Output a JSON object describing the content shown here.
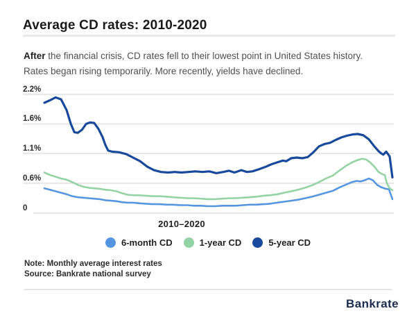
{
  "header": {
    "title": "Average CD rates: 2010-2020",
    "description_lead": "After",
    "description_rest": " the financial crisis, CD rates fell to their lowest point in United States history. Rates began rising temporarily. More recently, yields have declined."
  },
  "footer": {
    "note": "Note: Monthly average interest rates",
    "source": "Source: Bankrate national survey",
    "brand": "Bankrate"
  },
  "colors": {
    "six_month_cd": "#5596e0",
    "one_year_cd": "#94d3a3",
    "five_year_cd": "#17499c",
    "gridline": "#e0e0e0",
    "brand_navy": "#1b2c52"
  },
  "chart_data": {
    "type": "line",
    "title": "Average CD rates: 2010-2020",
    "xlabel": "2010–2020",
    "ylabel": "",
    "x_range": [
      2010,
      2020
    ],
    "ylim": [
      0,
      2.2
    ],
    "yticks": [
      "2.2%",
      "1.6%",
      "1.1%",
      "0.6%",
      "0"
    ],
    "ytick_values": [
      2.2,
      1.6,
      1.1,
      0.6,
      0
    ],
    "grid": true,
    "legend_position": "bottom",
    "units": "percent",
    "series": [
      {
        "name": "6-month CD",
        "color": "#5596e0",
        "points": [
          [
            0,
            0.5
          ],
          [
            0.016,
            0.47
          ],
          [
            0.032,
            0.44
          ],
          [
            0.048,
            0.41
          ],
          [
            0.064,
            0.38
          ],
          [
            0.08,
            0.34
          ],
          [
            0.096,
            0.32
          ],
          [
            0.112,
            0.31
          ],
          [
            0.127,
            0.3
          ],
          [
            0.143,
            0.29
          ],
          [
            0.159,
            0.28
          ],
          [
            0.175,
            0.26
          ],
          [
            0.191,
            0.25
          ],
          [
            0.207,
            0.24
          ],
          [
            0.223,
            0.22
          ],
          [
            0.239,
            0.21
          ],
          [
            0.255,
            0.21
          ],
          [
            0.271,
            0.2
          ],
          [
            0.291,
            0.19
          ],
          [
            0.311,
            0.18
          ],
          [
            0.331,
            0.18
          ],
          [
            0.351,
            0.17
          ],
          [
            0.37,
            0.17
          ],
          [
            0.39,
            0.16
          ],
          [
            0.41,
            0.16
          ],
          [
            0.43,
            0.15
          ],
          [
            0.45,
            0.15
          ],
          [
            0.47,
            0.14
          ],
          [
            0.49,
            0.14
          ],
          [
            0.51,
            0.15
          ],
          [
            0.53,
            0.15
          ],
          [
            0.55,
            0.15
          ],
          [
            0.57,
            0.16
          ],
          [
            0.59,
            0.17
          ],
          [
            0.61,
            0.17
          ],
          [
            0.629,
            0.18
          ],
          [
            0.649,
            0.19
          ],
          [
            0.669,
            0.21
          ],
          [
            0.689,
            0.23
          ],
          [
            0.709,
            0.25
          ],
          [
            0.729,
            0.27
          ],
          [
            0.749,
            0.3
          ],
          [
            0.769,
            0.33
          ],
          [
            0.789,
            0.37
          ],
          [
            0.809,
            0.41
          ],
          [
            0.829,
            0.45
          ],
          [
            0.849,
            0.52
          ],
          [
            0.869,
            0.58
          ],
          [
            0.884,
            0.62
          ],
          [
            0.897,
            0.64
          ],
          [
            0.908,
            0.63
          ],
          [
            0.92,
            0.65
          ],
          [
            0.932,
            0.68
          ],
          [
            0.944,
            0.65
          ],
          [
            0.956,
            0.57
          ],
          [
            0.968,
            0.52
          ],
          [
            0.98,
            0.49
          ],
          [
            0.99,
            0.48
          ],
          [
            1,
            0.28
          ]
        ]
      },
      {
        "name": "1-year CD",
        "color": "#94d3a3",
        "points": [
          [
            0,
            0.78
          ],
          [
            0.016,
            0.74
          ],
          [
            0.032,
            0.71
          ],
          [
            0.048,
            0.68
          ],
          [
            0.064,
            0.66
          ],
          [
            0.08,
            0.62
          ],
          [
            0.096,
            0.57
          ],
          [
            0.112,
            0.53
          ],
          [
            0.127,
            0.51
          ],
          [
            0.143,
            0.5
          ],
          [
            0.159,
            0.49
          ],
          [
            0.175,
            0.47
          ],
          [
            0.191,
            0.46
          ],
          [
            0.207,
            0.44
          ],
          [
            0.223,
            0.4
          ],
          [
            0.239,
            0.37
          ],
          [
            0.255,
            0.36
          ],
          [
            0.271,
            0.36
          ],
          [
            0.291,
            0.35
          ],
          [
            0.311,
            0.34
          ],
          [
            0.331,
            0.34
          ],
          [
            0.351,
            0.33
          ],
          [
            0.37,
            0.32
          ],
          [
            0.39,
            0.31
          ],
          [
            0.41,
            0.3
          ],
          [
            0.43,
            0.3
          ],
          [
            0.45,
            0.29
          ],
          [
            0.47,
            0.28
          ],
          [
            0.49,
            0.28
          ],
          [
            0.51,
            0.29
          ],
          [
            0.53,
            0.3
          ],
          [
            0.55,
            0.3
          ],
          [
            0.57,
            0.31
          ],
          [
            0.59,
            0.32
          ],
          [
            0.61,
            0.33
          ],
          [
            0.629,
            0.35
          ],
          [
            0.649,
            0.36
          ],
          [
            0.669,
            0.38
          ],
          [
            0.689,
            0.41
          ],
          [
            0.709,
            0.44
          ],
          [
            0.729,
            0.47
          ],
          [
            0.749,
            0.51
          ],
          [
            0.769,
            0.56
          ],
          [
            0.789,
            0.62
          ],
          [
            0.809,
            0.68
          ],
          [
            0.829,
            0.73
          ],
          [
            0.849,
            0.82
          ],
          [
            0.869,
            0.9
          ],
          [
            0.884,
            0.95
          ],
          [
            0.9,
            0.99
          ],
          [
            0.912,
            1.01
          ],
          [
            0.924,
            1.0
          ],
          [
            0.936,
            0.95
          ],
          [
            0.948,
            0.88
          ],
          [
            0.96,
            0.79
          ],
          [
            0.972,
            0.75
          ],
          [
            0.978,
            0.74
          ],
          [
            0.984,
            0.6
          ],
          [
            0.992,
            0.5
          ],
          [
            1,
            0.46
          ]
        ]
      },
      {
        "name": "5-year CD",
        "color": "#17499c",
        "points": [
          [
            0,
            2.03
          ],
          [
            0.016,
            2.08
          ],
          [
            0.032,
            2.14
          ],
          [
            0.048,
            2.1
          ],
          [
            0.064,
            1.88
          ],
          [
            0.076,
            1.6
          ],
          [
            0.086,
            1.46
          ],
          [
            0.096,
            1.45
          ],
          [
            0.108,
            1.5
          ],
          [
            0.12,
            1.6
          ],
          [
            0.131,
            1.63
          ],
          [
            0.143,
            1.62
          ],
          [
            0.155,
            1.52
          ],
          [
            0.167,
            1.38
          ],
          [
            0.175,
            1.25
          ],
          [
            0.183,
            1.15
          ],
          [
            0.195,
            1.13
          ],
          [
            0.215,
            1.12
          ],
          [
            0.235,
            1.09
          ],
          [
            0.255,
            1.03
          ],
          [
            0.275,
            0.97
          ],
          [
            0.295,
            0.88
          ],
          [
            0.315,
            0.82
          ],
          [
            0.335,
            0.79
          ],
          [
            0.355,
            0.78
          ],
          [
            0.375,
            0.79
          ],
          [
            0.394,
            0.78
          ],
          [
            0.414,
            0.79
          ],
          [
            0.434,
            0.8
          ],
          [
            0.454,
            0.79
          ],
          [
            0.474,
            0.8
          ],
          [
            0.494,
            0.77
          ],
          [
            0.514,
            0.79
          ],
          [
            0.53,
            0.81
          ],
          [
            0.546,
            0.78
          ],
          [
            0.566,
            0.82
          ],
          [
            0.582,
            0.79
          ],
          [
            0.598,
            0.8
          ],
          [
            0.614,
            0.83
          ],
          [
            0.633,
            0.87
          ],
          [
            0.653,
            0.92
          ],
          [
            0.669,
            0.95
          ],
          [
            0.685,
            0.98
          ],
          [
            0.695,
            0.97
          ],
          [
            0.709,
            1.02
          ],
          [
            0.725,
            1.03
          ],
          [
            0.741,
            1.02
          ],
          [
            0.757,
            1.04
          ],
          [
            0.773,
            1.12
          ],
          [
            0.789,
            1.22
          ],
          [
            0.805,
            1.26
          ],
          [
            0.821,
            1.28
          ],
          [
            0.837,
            1.33
          ],
          [
            0.853,
            1.37
          ],
          [
            0.869,
            1.4
          ],
          [
            0.884,
            1.42
          ],
          [
            0.9,
            1.43
          ],
          [
            0.916,
            1.41
          ],
          [
            0.932,
            1.34
          ],
          [
            0.948,
            1.22
          ],
          [
            0.96,
            1.14
          ],
          [
            0.968,
            1.1
          ],
          [
            0.974,
            1.08
          ],
          [
            0.982,
            1.13
          ],
          [
            0.992,
            1.05
          ],
          [
            1,
            0.7
          ]
        ]
      }
    ]
  }
}
